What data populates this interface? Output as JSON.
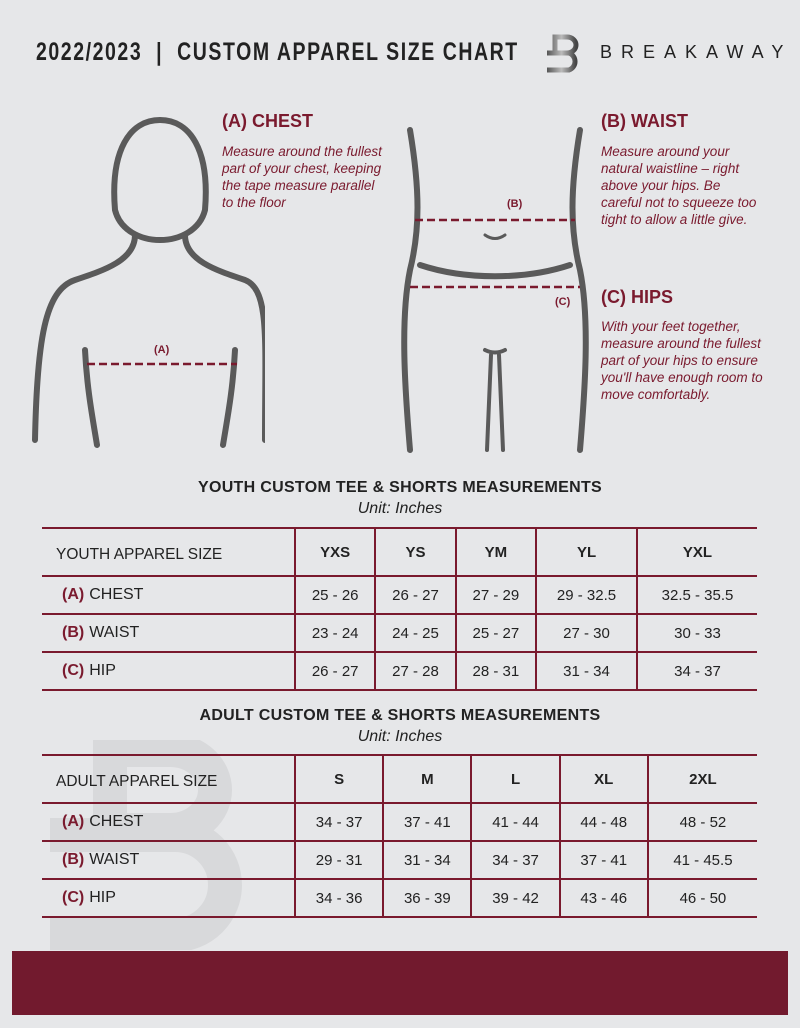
{
  "header": {
    "title": "2022/2023  |  CUSTOM APPAREL SIZE CHART",
    "brand": "BREAKAWAY",
    "logo_letter": "B"
  },
  "measurements": {
    "chest": {
      "heading": "(A) CHEST",
      "text": "Measure around the fullest part of your chest, keeping the tape measure parallel to the floor",
      "marker": "(A)"
    },
    "waist": {
      "heading": "(B) WAIST",
      "text": "Measure around your natural waistline – right above your hips. Be careful not to squeeze too tight to allow a little give.",
      "marker": "(B)"
    },
    "hips": {
      "heading": "(C) HIPS",
      "text": "With your feet together, measure around the fullest part of your hips to ensure you'll have enough room to move comfortably.",
      "marker": "(C)"
    }
  },
  "colors": {
    "accent": "#7a1a2e",
    "footer": "#721a2e",
    "background": "#e6e7e9"
  },
  "youth": {
    "title": "YOUTH CUSTOM TEE & SHORTS MEASUREMENTS",
    "unit": "Unit: Inches",
    "columns": [
      "YOUTH APPAREL SIZE",
      "YXS",
      "YS",
      "YM",
      "YL",
      "YXL"
    ],
    "rows": [
      {
        "letter": "(A)",
        "label": "CHEST",
        "values": [
          "25 - 26",
          "26 - 27",
          "27 - 29",
          "29 - 32.5",
          "32.5 - 35.5"
        ]
      },
      {
        "letter": "(B)",
        "label": "WAIST",
        "values": [
          "23 - 24",
          "24 - 25",
          "25 - 27",
          "27 - 30",
          "30 - 33"
        ]
      },
      {
        "letter": "(C)",
        "label": "HIP",
        "values": [
          "26 - 27",
          "27 - 28",
          "28 - 31",
          "31 - 34",
          "34 - 37"
        ]
      }
    ]
  },
  "adult": {
    "title": "ADULT CUSTOM TEE & SHORTS MEASUREMENTS",
    "unit": "Unit: Inches",
    "columns": [
      "ADULT APPAREL SIZE",
      "S",
      "M",
      "L",
      "XL",
      "2XL"
    ],
    "rows": [
      {
        "letter": "(A)",
        "label": "CHEST",
        "values": [
          "34 - 37",
          "37 - 41",
          "41 - 44",
          "44 - 48",
          "48 - 52"
        ]
      },
      {
        "letter": "(B)",
        "label": "WAIST",
        "values": [
          "29 - 31",
          "31 - 34",
          "34 - 37",
          "37 - 41",
          "41 - 45.5"
        ]
      },
      {
        "letter": "(C)",
        "label": "HIP",
        "values": [
          "34 - 36",
          "36 - 39",
          "39 - 42",
          "43 - 46",
          "46 - 50"
        ]
      }
    ]
  }
}
